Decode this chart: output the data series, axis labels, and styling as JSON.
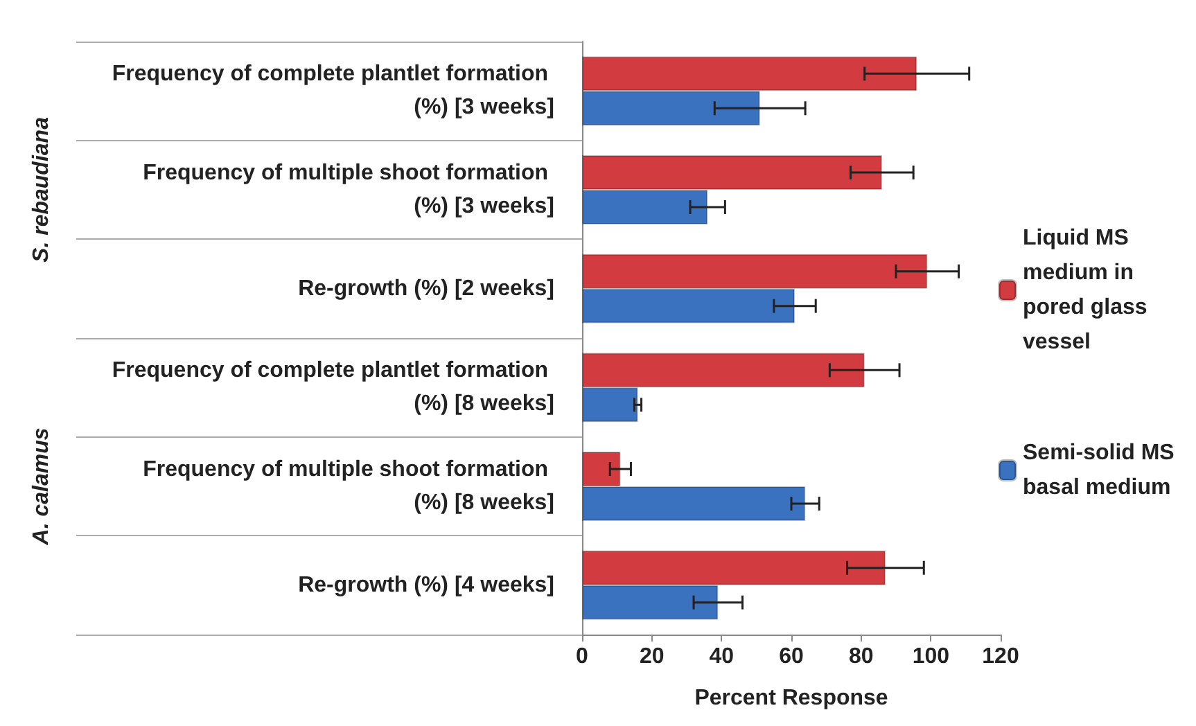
{
  "chart_data": {
    "type": "bar",
    "orientation": "horizontal",
    "xlabel": "Percent Response",
    "categories": [
      "Frequency of complete plantlet formation (%) [3 weeks]",
      "Frequency of multiple shoot formation (%) [3 weeks]",
      "Re-growth (%) [2 weeks]",
      "Frequency of complete plantlet formation (%) [8 weeks]",
      "Frequency of multiple shoot formation (%) [8 weeks]",
      "Re-growth (%) [4 weeks]"
    ],
    "series": [
      {
        "name": "Liquid MS medium in pored glass vessel",
        "color": "#d23b3f",
        "values": [
          96,
          86,
          99,
          81,
          11,
          87
        ],
        "errors": [
          15,
          9,
          9,
          10,
          3,
          11
        ]
      },
      {
        "name": "Semi-solid MS basal medium",
        "color": "#3a72c0",
        "values": [
          51,
          36,
          61,
          16,
          64,
          39
        ],
        "errors": [
          13,
          5,
          6,
          1,
          4,
          7
        ]
      }
    ],
    "xlim": [
      0,
      120
    ],
    "xticks": [
      0,
      20,
      40,
      60,
      80,
      100,
      120
    ],
    "grid": false,
    "legend": "right",
    "annotations": [
      "S. rebaudiana",
      "A. calamus"
    ]
  }
}
